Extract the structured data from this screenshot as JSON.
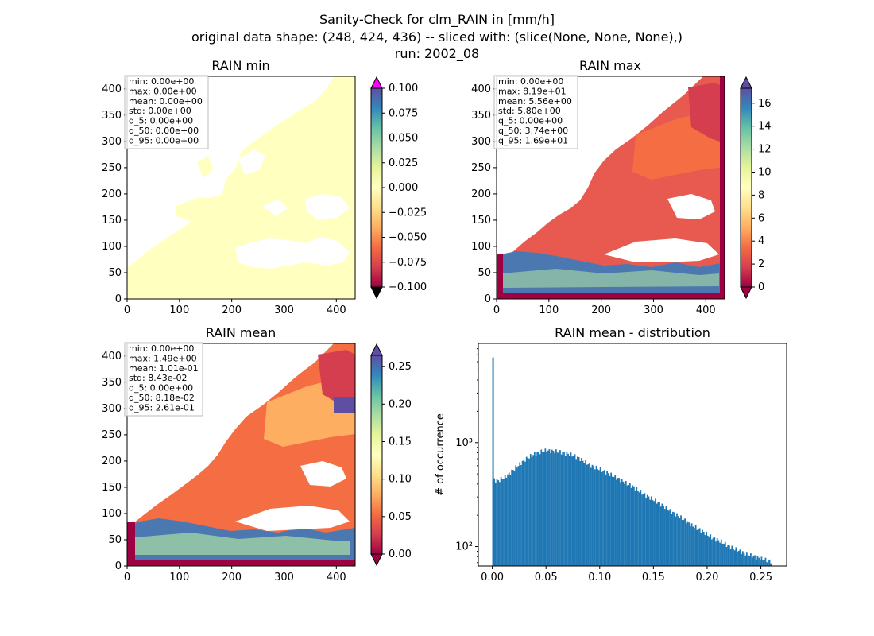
{
  "figure": {
    "title_lines": [
      "Sanity-Check for clm_RAIN in [mm/h]",
      "original data shape: (248, 424, 436) -- sliced with: (slice(None, None, None),)",
      "run: 2002_08"
    ]
  },
  "chart_data": [
    {
      "type": "heatmap",
      "title": "RAIN min",
      "xlim": [
        0,
        436
      ],
      "ylim": [
        0,
        424
      ],
      "xticks": [
        "0",
        "100",
        "200",
        "300",
        "400"
      ],
      "yticks": [
        "0",
        "50",
        "100",
        "150",
        "200",
        "250",
        "300",
        "350",
        "400"
      ],
      "colormap": "Spectral",
      "fill_color": "#ffffbf",
      "colorbar": {
        "range": [
          -0.1,
          0.1
        ],
        "ticks": [
          "0.100",
          "0.075",
          "0.050",
          "0.025",
          "0.000",
          "−0.025",
          "−0.050",
          "−0.075",
          "−0.100"
        ],
        "extend_colors": {
          "over": "#ff00ff",
          "under": "#000000"
        }
      },
      "stats": [
        "min: 0.00e+00",
        "max: 0.00e+00",
        "mean: 0.00e+00",
        "std: 0.00e+00",
        "q_5: 0.00e+00",
        "q_50: 0.00e+00",
        "q_95: 0.00e+00"
      ]
    },
    {
      "type": "heatmap",
      "title": "RAIN max",
      "xlim": [
        0,
        436
      ],
      "ylim": [
        0,
        424
      ],
      "xticks": [
        "0",
        "100",
        "200",
        "300",
        "400"
      ],
      "yticks": [
        "0",
        "50",
        "100",
        "150",
        "200",
        "250",
        "300",
        "350",
        "400"
      ],
      "colormap": "Spectral",
      "colorbar": {
        "range": [
          0,
          17.3
        ],
        "ticks": [
          "16",
          "14",
          "12",
          "10",
          "8",
          "6",
          "4",
          "2",
          "0"
        ],
        "extend_colors": {
          "over": "#5e4fa2",
          "under": "#9e0142"
        }
      },
      "stats": [
        "min: 0.00e+00",
        "max: 8.19e+01",
        "mean: 5.56e+00",
        "std: 5.80e+00",
        "q_5: 0.00e+00",
        "q_50: 3.74e+00",
        "q_95: 1.69e+01"
      ]
    },
    {
      "type": "heatmap",
      "title": "RAIN mean",
      "xlim": [
        0,
        436
      ],
      "ylim": [
        0,
        424
      ],
      "xticks": [
        "0",
        "100",
        "200",
        "300",
        "400"
      ],
      "yticks": [
        "0",
        "50",
        "100",
        "150",
        "200",
        "250",
        "300",
        "350",
        "400"
      ],
      "colormap": "Spectral",
      "colorbar": {
        "range": [
          0,
          0.265
        ],
        "ticks": [
          "0.25",
          "0.20",
          "0.15",
          "0.10",
          "0.05",
          "0.00"
        ],
        "extend_colors": {
          "over": "#5e4fa2",
          "under": "#9e0142"
        }
      },
      "stats": [
        "min: 0.00e+00",
        "max: 1.49e+00",
        "mean: 1.01e-01",
        "std: 8.43e-02",
        "q_5: 0.00e+00",
        "q_50: 8.18e-02",
        "q_95: 2.61e-01"
      ]
    },
    {
      "type": "bar",
      "title": "RAIN mean - distribution",
      "ylabel": "# of occurrence",
      "yscale": "log",
      "xlim": [
        -0.013,
        0.274
      ],
      "ylim": [
        65,
        9000
      ],
      "xticks": [
        "0.00",
        "0.05",
        "0.10",
        "0.15",
        "0.20",
        "0.25"
      ],
      "yticks": [
        "10²",
        "10³"
      ],
      "bar_color": "#1f77b4",
      "spike": {
        "x": 0.0,
        "count": 6600
      },
      "x": [
        0.0,
        0.005,
        0.01,
        0.015,
        0.02,
        0.025,
        0.03,
        0.035,
        0.04,
        0.045,
        0.05,
        0.055,
        0.06,
        0.065,
        0.07,
        0.075,
        0.08,
        0.085,
        0.09,
        0.095,
        0.1,
        0.105,
        0.11,
        0.115,
        0.12,
        0.125,
        0.13,
        0.135,
        0.14,
        0.145,
        0.15,
        0.155,
        0.16,
        0.165,
        0.17,
        0.175,
        0.18,
        0.185,
        0.19,
        0.195,
        0.2,
        0.205,
        0.21,
        0.215,
        0.22,
        0.225,
        0.23,
        0.235,
        0.24,
        0.245,
        0.25,
        0.255,
        0.26
      ],
      "counts": [
        440,
        430,
        460,
        500,
        560,
        620,
        690,
        740,
        790,
        820,
        840,
        830,
        820,
        800,
        780,
        750,
        710,
        660,
        610,
        580,
        550,
        520,
        490,
        460,
        430,
        400,
        380,
        350,
        320,
        300,
        280,
        260,
        240,
        220,
        205,
        190,
        175,
        160,
        150,
        140,
        130,
        120,
        115,
        108,
        100,
        95,
        90,
        86,
        82,
        79,
        76,
        74,
        72
      ]
    }
  ]
}
